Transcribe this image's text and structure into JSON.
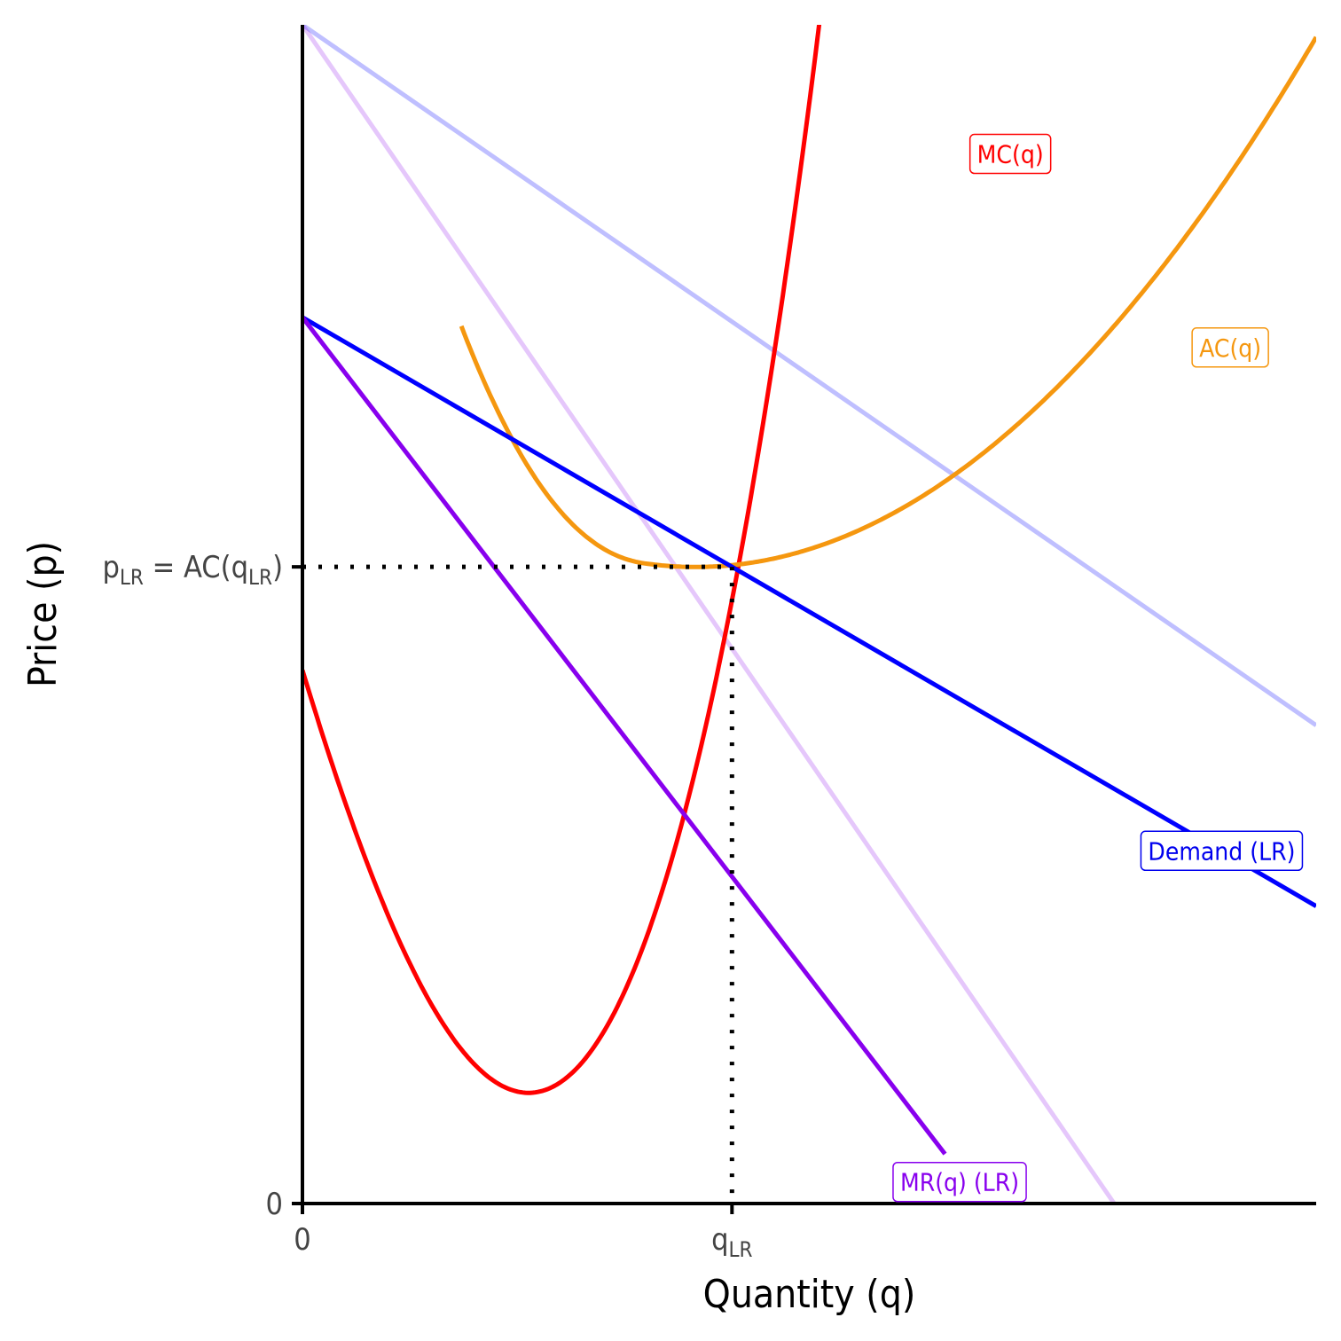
{
  "chart_data": {
    "type": "line",
    "xlabel": "Quantity (q)",
    "ylabel": "Price (p)",
    "xlim": [
      0,
      11.8
    ],
    "ylim": [
      0,
      13.7
    ],
    "x_ticks": [
      {
        "value": 0,
        "label": "0"
      },
      {
        "value": 5,
        "label": "q",
        "sub": "LR"
      }
    ],
    "y_ticks": [
      {
        "value": 0,
        "label": "0"
      },
      {
        "value": 7.4,
        "label": "p",
        "sub": "LR",
        "suffix": " = AC(q",
        "sub2": "LR",
        "end": ")"
      }
    ],
    "equilibrium": {
      "q": 5,
      "p": 7.4,
      "mr_mc": 3.8
    },
    "series": [
      {
        "name": "MC(q)",
        "kind": "cubic",
        "coef": [
          0.125,
          -0.5,
          3.8,
          6.2
        ],
        "x_range": [
          0,
          8.62
        ],
        "color": "#ff0000",
        "opacity": 1,
        "label_at": [
          8.24,
          12.2
        ],
        "label_color": "#ff0000"
      },
      {
        "name": "AC(q)",
        "kind": "ac",
        "coef": [
          0.0417,
          -0.25,
          3.8,
          24
        ],
        "x_range": [
          1.85,
          11.8
        ],
        "color": "#f5970f",
        "opacity": 1,
        "label_at": [
          10.8,
          9.95
        ],
        "label_color": "#f5970f"
      },
      {
        "name": "Demand (LR)",
        "kind": "linear",
        "intercept": 10.3,
        "slope": -0.58,
        "x_range": [
          0,
          11.8
        ],
        "color": "#0000ff",
        "opacity": 1,
        "label_at": [
          10.7,
          4.1
        ],
        "label_color": "#0000ee"
      },
      {
        "name": "MR(q) (LR)",
        "kind": "linear",
        "intercept": 10.3,
        "slope": -1.3,
        "x_range": [
          0,
          7.48
        ],
        "color": "#8800ee",
        "opacity": 1,
        "label_at": [
          7.65,
          0.25
        ],
        "label_color": "#8800ee"
      },
      {
        "kind": "linear",
        "intercept": 13.7,
        "slope": -0.69,
        "x_range": [
          0,
          11.8
        ],
        "color": "#0000ff",
        "opacity": 0.25
      },
      {
        "kind": "linear",
        "intercept": 13.7,
        "slope": -1.45,
        "x_range": [
          0,
          9.45
        ],
        "color": "#8800ee",
        "opacity": 0.22
      }
    ]
  }
}
